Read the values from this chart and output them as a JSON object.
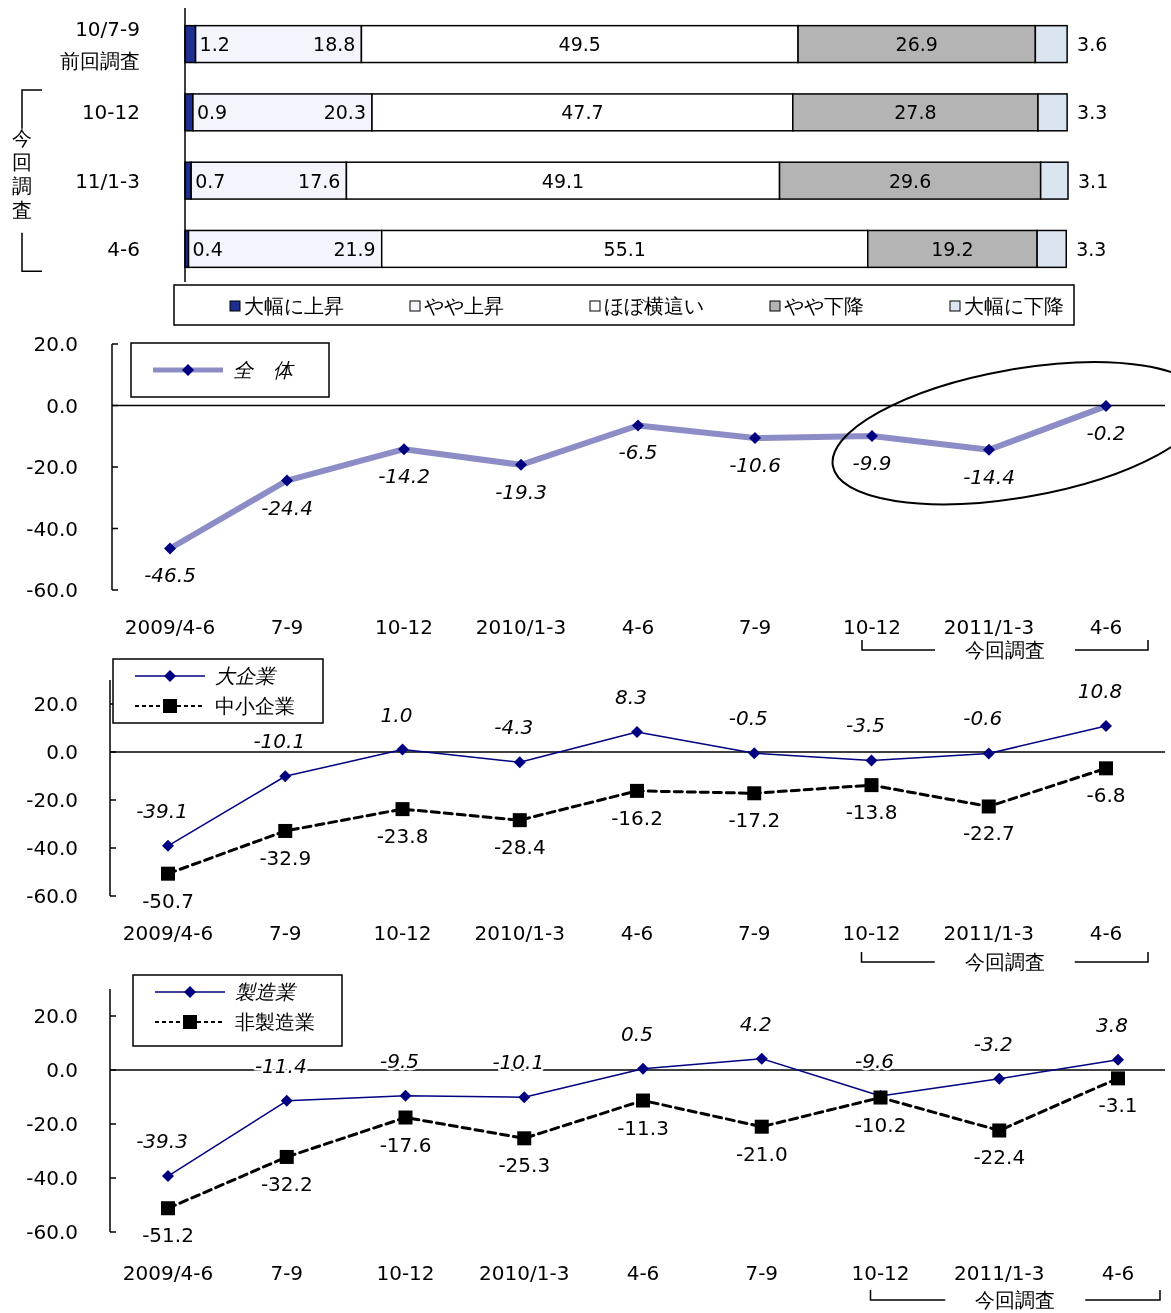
{
  "chart_data": [
    {
      "type": "bar",
      "orientation": "horizontal",
      "stacked": true,
      "categories": [
        "10/7-9\n前回調査",
        "10-12",
        "11/1-3",
        "4-6"
      ],
      "legend": "bottom",
      "data_labels": true,
      "annotations": [
        "今回調査"
      ],
      "series": [
        {
          "name": "大幅に上昇",
          "color": "#1f2f8f",
          "values": [
            1.2,
            0.9,
            0.7,
            0.4
          ]
        },
        {
          "name": "やや上昇",
          "color": "#f4f5fc",
          "values": [
            18.8,
            20.3,
            17.6,
            21.9
          ]
        },
        {
          "name": "ほぼ横這い",
          "color": "#ffffff",
          "values": [
            49.5,
            47.7,
            49.1,
            55.1
          ]
        },
        {
          "name": "やや下降",
          "color": "#b4b4b4",
          "values": [
            26.9,
            27.8,
            29.6,
            19.2
          ]
        },
        {
          "name": "大幅に下降",
          "color": "#dbe5f1",
          "values": [
            3.6,
            3.3,
            3.1,
            3.3
          ]
        }
      ]
    },
    {
      "type": "line",
      "categories": [
        "2009/4-6",
        "7-9",
        "10-12",
        "2010/1-3",
        "4-6",
        "7-9",
        "10-12",
        "2011/1-3",
        "4-6"
      ],
      "ylim": [
        -60,
        20
      ],
      "yticks": [
        {
          "value": -60,
          "label": "-60.0"
        },
        {
          "value": -40,
          "label": "-40.0"
        },
        {
          "value": -20,
          "label": "-20.0"
        },
        {
          "value": 0,
          "label": "0.0"
        },
        {
          "value": 20,
          "label": "20.0"
        }
      ],
      "legend": "top left",
      "ref_lines": [
        {
          "axis": "y",
          "value": 0
        }
      ],
      "annotations": [
        "今回調査"
      ],
      "series": [
        {
          "name": "全　体",
          "color": "#000080",
          "marker": "diamond",
          "line_style": "solid",
          "values": [
            -46.5,
            -24.4,
            -14.2,
            -19.3,
            -6.5,
            -10.6,
            -9.9,
            -14.4,
            -0.2
          ],
          "value_labels": [
            "-46.5",
            "-24.4",
            "-14.2",
            "-19.3",
            "-6.5",
            "-10.6",
            "-9.9",
            "-14.4",
            "-0.2"
          ]
        }
      ]
    },
    {
      "type": "line",
      "categories": [
        "2009/4-6",
        "7-9",
        "10-12",
        "2010/1-3",
        "4-6",
        "7-9",
        "10-12",
        "2011/1-3",
        "4-6"
      ],
      "ylim": [
        -60,
        30
      ],
      "yticks": [
        {
          "value": -60,
          "label": "-60.0"
        },
        {
          "value": -40,
          "label": "-40.0"
        },
        {
          "value": -20,
          "label": "-20.0"
        },
        {
          "value": 0,
          "label": "0.0"
        },
        {
          "value": 20,
          "label": "20.0"
        }
      ],
      "legend": "top left",
      "ref_lines": [
        {
          "axis": "y",
          "value": 0
        }
      ],
      "annotations": [
        "今回調査"
      ],
      "series": [
        {
          "name": "大企業",
          "color": "#000080",
          "marker": "diamond",
          "line_style": "solid",
          "values": [
            -39.1,
            -10.1,
            1.0,
            -4.3,
            8.3,
            -0.5,
            -3.5,
            -0.6,
            10.8
          ],
          "value_labels": [
            "-39.1",
            "-10.1",
            "1.0",
            "-4.3",
            "8.3",
            "-0.5",
            "-3.5",
            "-0.6",
            "10.8"
          ]
        },
        {
          "name": "中小企業",
          "color": "#000000",
          "marker": "square",
          "line_style": "dashed",
          "values": [
            -50.7,
            -32.9,
            -23.8,
            -28.4,
            -16.2,
            -17.2,
            -13.8,
            -22.7,
            -6.8
          ],
          "value_labels": [
            "-50.7",
            "-32.9",
            "-23.8",
            "-28.4",
            "-16.2",
            "-17.2",
            "-13.8",
            "-22.7",
            "-6.8"
          ]
        }
      ]
    },
    {
      "type": "line",
      "categories": [
        "2009/4-6",
        "7-9",
        "10-12",
        "2010/1-3",
        "4-6",
        "7-9",
        "10-12",
        "2011/1-3",
        "4-6"
      ],
      "ylim": [
        -60,
        30
      ],
      "yticks": [
        {
          "value": -60,
          "label": "-60.0"
        },
        {
          "value": -40,
          "label": "-40.0"
        },
        {
          "value": -20,
          "label": "-20.0"
        },
        {
          "value": 0,
          "label": "0.0"
        },
        {
          "value": 20,
          "label": "20.0"
        }
      ],
      "legend": "top left",
      "ref_lines": [
        {
          "axis": "y",
          "value": 0
        }
      ],
      "annotations": [
        "今回調査"
      ],
      "series": [
        {
          "name": "製造業",
          "color": "#000080",
          "marker": "diamond",
          "line_style": "solid",
          "values": [
            -39.3,
            -11.4,
            -9.5,
            -10.1,
            0.5,
            4.2,
            -9.6,
            -3.2,
            3.8
          ],
          "value_labels": [
            "-39.3",
            "-11.4",
            "-9.5",
            "-10.1",
            "0.5",
            "4.2",
            "-9.6",
            "-3.2",
            "3.8"
          ]
        },
        {
          "name": "非製造業",
          "color": "#000000",
          "marker": "square",
          "line_style": "dashed",
          "values": [
            -51.2,
            -32.2,
            -17.6,
            -25.3,
            -11.3,
            -21.0,
            -10.2,
            -22.4,
            -3.1
          ],
          "value_labels": [
            "-51.2",
            "-32.2",
            "-17.6",
            "-25.3",
            "-11.3",
            "-21.0",
            "-10.2",
            "-22.4",
            "-3.1"
          ]
        }
      ]
    }
  ]
}
